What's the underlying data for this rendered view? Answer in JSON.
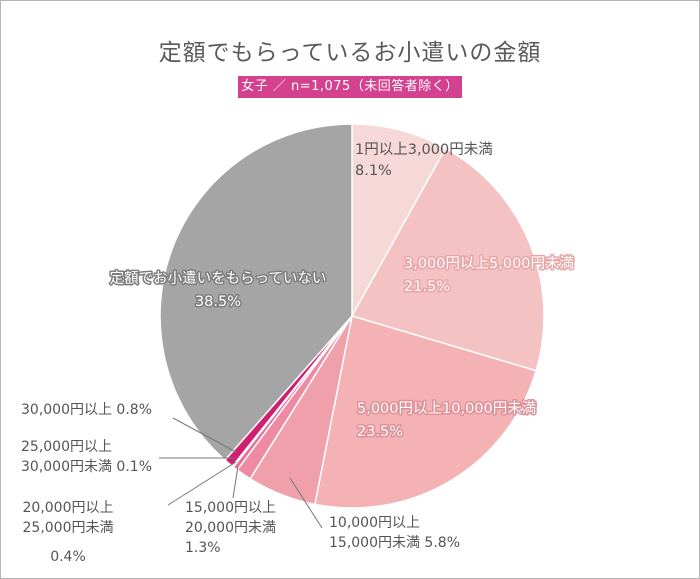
{
  "title": "定額でもらっているお小遣いの金額",
  "subtitle": "女子 ／ n=1,075（未回答者除く）",
  "chart_data": {
    "type": "pie",
    "start_angle_deg": 0,
    "direction": "clockwise",
    "slices": [
      {
        "key": "s1",
        "label": "1円以上3,000円未満",
        "value": 8.1,
        "value_label": "8.1%",
        "color": "#f6d8d8"
      },
      {
        "key": "s2",
        "label": "3,000円以上5,000円未満",
        "value": 21.5,
        "value_label": "21.5%",
        "color": "#f4c2c2"
      },
      {
        "key": "s3",
        "label": "5,000円以上10,000円未満",
        "value": 23.5,
        "value_label": "23.5%",
        "color": "#f4b2b4"
      },
      {
        "key": "s4",
        "label": "10,000円以上15,000円未満",
        "value": 5.8,
        "value_label": "5.8%",
        "color": "#f0a0ab"
      },
      {
        "key": "s5",
        "label": "15,000円以上20,000円未満",
        "value": 1.3,
        "value_label": "1.3%",
        "color": "#ee8aa3"
      },
      {
        "key": "s6",
        "label": "20,000円以上25,000円未満",
        "value": 0.4,
        "value_label": "0.4%",
        "color": "#ea6f9a"
      },
      {
        "key": "s7",
        "label": "25,000円以上30,000円未満",
        "value": 0.1,
        "value_label": "0.1%",
        "color": "#e24f8d"
      },
      {
        "key": "s8",
        "label": "30,000円以上",
        "value": 0.8,
        "value_label": "0.8%",
        "color": "#d11f70"
      },
      {
        "key": "s9",
        "label": "定額でお小遣いをもらっていない",
        "value": 38.5,
        "value_label": "38.5%",
        "color": "#a5a5a5"
      }
    ],
    "slice_labels": {
      "s1": {
        "lines": [
          "1円以上3,000円未満",
          "8.1%"
        ]
      },
      "s2": {
        "lines": [
          "3,000円以上5,000円未満",
          "21.5%"
        ]
      },
      "s3": {
        "lines": [
          "5,000円以上10,000円未満",
          "23.5%"
        ]
      },
      "s4": {
        "lines": [
          "10,000円以上",
          "15,000円未満 5.8%"
        ]
      },
      "s5": {
        "lines": [
          "15,000円以上",
          "20,000円未満",
          "1.3%"
        ]
      },
      "s6": {
        "lines": [
          "20,000円以上",
          "25,000円未満",
          "0.4%"
        ]
      },
      "s7": {
        "lines": [
          "25,000円以上",
          "30,000円未満 0.1%"
        ]
      },
      "s8": {
        "lines": [
          "30,000円以上 0.8%"
        ]
      },
      "s9": {
        "lines": [
          "定額でお小遣いをもらっていない",
          "38.5%"
        ]
      }
    }
  }
}
